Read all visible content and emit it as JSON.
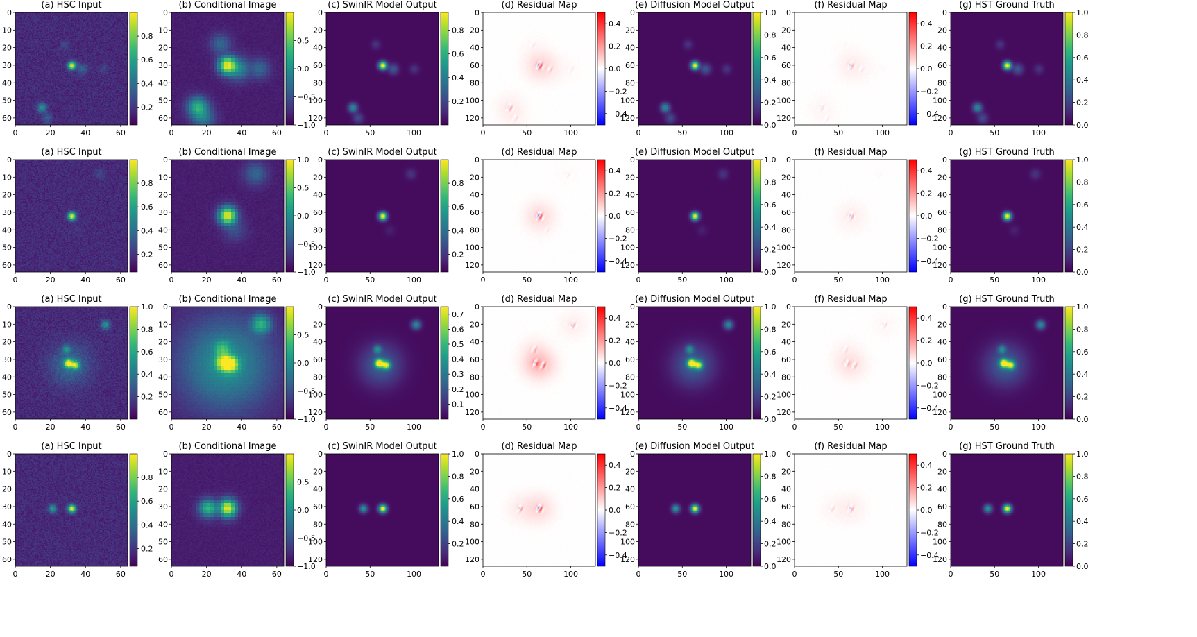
{
  "figure": {
    "panel_titles": [
      "(a) HSC Input",
      "(b) Conditional Image",
      "(c) SwinIR Model Output",
      "(d) Residual Map",
      "(e) Diffusion Model Output",
      "(f) Residual Map",
      "(g) HST Ground Truth"
    ],
    "panel_types": [
      "viridis",
      "viridis",
      "viridis",
      "residual",
      "viridis",
      "residual",
      "viridis"
    ],
    "image_axes": {
      "small": {
        "range": [
          0,
          64
        ],
        "yticks": [
          "0",
          "10",
          "20",
          "30",
          "40",
          "50",
          "60"
        ],
        "xticks": [
          "0",
          "20",
          "40",
          "60"
        ]
      },
      "large": {
        "range": [
          0,
          128
        ],
        "yticks": [
          "0",
          "20",
          "40",
          "60",
          "80",
          "100",
          "120"
        ],
        "xticks": [
          "0",
          "50",
          "100"
        ]
      }
    },
    "panel_sizes": [
      "small",
      "small",
      "large",
      "large",
      "large",
      "large",
      "large"
    ],
    "colormaps": {
      "viridis": [
        "#440154",
        "#482878",
        "#3e4989",
        "#31688e",
        "#26828e",
        "#1f9e89",
        "#35b779",
        "#6ece58",
        "#b5de2b",
        "#fde725"
      ],
      "bwr": [
        "#0000ff",
        "#ffffff",
        "#ff0000"
      ]
    },
    "rows": [
      {
        "colorbars": [
          {
            "range": [
              0.05,
              1.0
            ],
            "ticks": [
              "0.2",
              "0.4",
              "0.6",
              "0.8"
            ]
          },
          {
            "range": [
              -1.0,
              1.0
            ],
            "ticks": [
              "0.5",
              "0.0",
              "−0.5",
              "−1.0"
            ]
          },
          {
            "range": [
              0.0,
              0.95
            ],
            "ticks": [
              "0.2",
              "0.4",
              "0.6",
              "0.8"
            ]
          },
          {
            "range": [
              -0.5,
              0.5
            ],
            "ticks": [
              "0.4",
              "0.2",
              "0.0",
              "−0.2",
              "−0.4"
            ]
          },
          {
            "range": [
              0.0,
              1.0
            ],
            "ticks": [
              "0.0",
              "0.2",
              "0.4",
              "0.6",
              "0.8",
              "1.0"
            ]
          },
          {
            "range": [
              -0.5,
              0.5
            ],
            "ticks": [
              "0.4",
              "0.2",
              "0.0",
              "−0.2",
              "−0.4"
            ]
          },
          {
            "range": [
              0.0,
              1.0
            ],
            "ticks": [
              "0.0",
              "0.2",
              "0.4",
              "0.6",
              "0.8",
              "1.0"
            ]
          }
        ],
        "sources": [
          {
            "x": 32,
            "y": 30,
            "amp": 1.0,
            "sigma": 1.6
          },
          {
            "x": 15,
            "y": 54,
            "amp": 0.45,
            "sigma": 1.8
          },
          {
            "x": 18,
            "y": 60,
            "amp": 0.2,
            "sigma": 2.0
          },
          {
            "x": 50,
            "y": 32,
            "amp": 0.12,
            "sigma": 1.8
          },
          {
            "x": 28,
            "y": 18,
            "amp": 0.12,
            "sigma": 1.8
          },
          {
            "x": 38,
            "y": 32,
            "amp": 0.25,
            "sigma": 2.0
          }
        ]
      },
      {
        "colorbars": [
          {
            "range": [
              0.05,
              1.0
            ],
            "ticks": [
              "0.2",
              "0.4",
              "0.6",
              "0.8"
            ]
          },
          {
            "range": [
              -1.0,
              1.0
            ],
            "ticks": [
              "1.0",
              "0.5",
              "0.0",
              "−0.5",
              "−1.0"
            ]
          },
          {
            "range": [
              0.05,
              1.0
            ],
            "ticks": [
              "0.2",
              "0.4",
              "0.6",
              "0.8"
            ]
          },
          {
            "range": [
              -0.5,
              0.5
            ],
            "ticks": [
              "0.4",
              "0.2",
              "0.0",
              "−0.2",
              "−0.4"
            ]
          },
          {
            "range": [
              0.0,
              1.0
            ],
            "ticks": [
              "0.0",
              "0.2",
              "0.4",
              "0.6",
              "0.8",
              "1.0"
            ]
          },
          {
            "range": [
              -0.5,
              0.5
            ],
            "ticks": [
              "0.4",
              "0.2",
              "0.0",
              "−0.2",
              "−0.4"
            ]
          },
          {
            "range": [
              0.0,
              1.0
            ],
            "ticks": [
              "0.0",
              "0.2",
              "0.4",
              "0.6",
              "0.8",
              "1.0"
            ]
          }
        ],
        "sources": [
          {
            "x": 32,
            "y": 32,
            "amp": 1.0,
            "sigma": 1.6
          },
          {
            "x": 48,
            "y": 8,
            "amp": 0.12,
            "sigma": 2.0
          },
          {
            "x": 36,
            "y": 40,
            "amp": 0.06,
            "sigma": 2.0
          }
        ]
      },
      {
        "colorbars": [
          {
            "range": [
              0.0,
              1.0
            ],
            "ticks": [
              "0.2",
              "0.4",
              "0.6",
              "0.8",
              "1.0"
            ]
          },
          {
            "range": [
              -1.0,
              1.0
            ],
            "ticks": [
              "0.5",
              "0.0",
              "−0.5",
              "−1.0"
            ]
          },
          {
            "range": [
              0.0,
              0.75
            ],
            "ticks": [
              "0.1",
              "0.2",
              "0.3",
              "0.4",
              "0.5",
              "0.6",
              "0.7"
            ]
          },
          {
            "range": [
              -0.5,
              0.5
            ],
            "ticks": [
              "0.4",
              "0.2",
              "0.0",
              "−0.2",
              "−0.4"
            ]
          },
          {
            "range": [
              0.0,
              1.0
            ],
            "ticks": [
              "0.0",
              "0.2",
              "0.4",
              "0.6",
              "0.8",
              "1.0"
            ]
          },
          {
            "range": [
              -0.5,
              0.5
            ],
            "ticks": [
              "0.4",
              "0.2",
              "0.0",
              "−0.2",
              "−0.4"
            ]
          },
          {
            "range": [
              0.0,
              1.0
            ],
            "ticks": [
              "0.0",
              "0.2",
              "0.4",
              "0.6",
              "0.8",
              "1.0"
            ]
          }
        ],
        "sources": [
          {
            "x": 30,
            "y": 32,
            "amp": 0.95,
            "sigma": 1.6
          },
          {
            "x": 34,
            "y": 33,
            "amp": 0.75,
            "sigma": 1.6
          },
          {
            "x": 29,
            "y": 24,
            "amp": 0.35,
            "sigma": 1.6
          },
          {
            "x": 51,
            "y": 10,
            "amp": 0.45,
            "sigma": 1.8
          },
          {
            "x": 31,
            "y": 33,
            "amp": 0.28,
            "sigma": 8.0
          }
        ]
      },
      {
        "colorbars": [
          {
            "range": [
              0.05,
              1.0
            ],
            "ticks": [
              "0.2",
              "0.4",
              "0.6",
              "0.8"
            ]
          },
          {
            "range": [
              -1.0,
              1.0
            ],
            "ticks": [
              "0.5",
              "0.0",
              "−0.5",
              "−1.0"
            ]
          },
          {
            "range": [
              0.0,
              1.0
            ],
            "ticks": [
              "0.2",
              "0.4",
              "0.6",
              "0.8",
              "1.0"
            ]
          },
          {
            "range": [
              -0.5,
              0.5
            ],
            "ticks": [
              "0.4",
              "0.2",
              "0.0",
              "−0.2",
              "−0.4"
            ]
          },
          {
            "range": [
              0.0,
              1.0
            ],
            "ticks": [
              "0.0",
              "0.2",
              "0.4",
              "0.6",
              "0.8",
              "1.0"
            ]
          },
          {
            "range": [
              -0.5,
              0.5
            ],
            "ticks": [
              "0.4",
              "0.2",
              "0.0",
              "−0.2",
              "−0.4"
            ]
          },
          {
            "range": [
              0.0,
              1.0
            ],
            "ticks": [
              "0.0",
              "0.2",
              "0.4",
              "0.6",
              "0.8",
              "1.0"
            ]
          }
        ],
        "sources": [
          {
            "x": 32,
            "y": 31,
            "amp": 1.0,
            "sigma": 1.6
          },
          {
            "x": 21,
            "y": 31,
            "amp": 0.5,
            "sigma": 1.6
          }
        ]
      }
    ]
  }
}
